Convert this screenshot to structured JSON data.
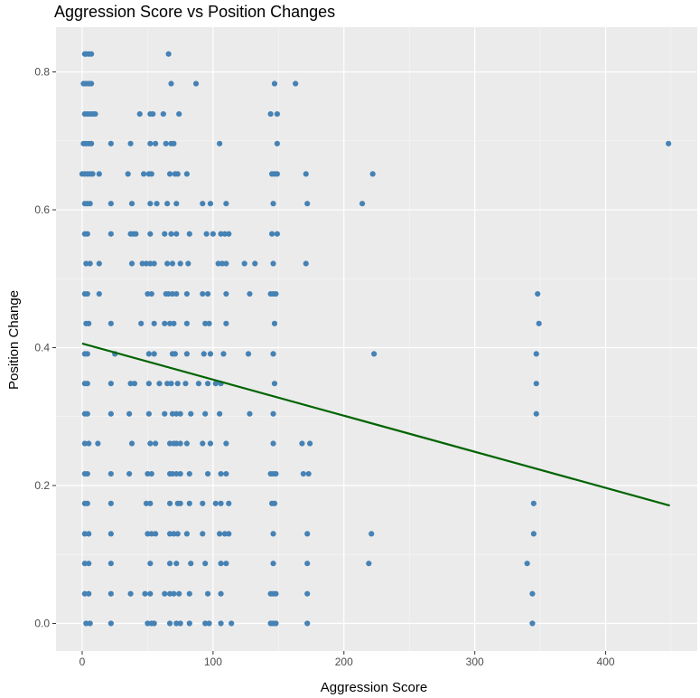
{
  "chart_data": {
    "type": "scatter",
    "title": "Aggression Score vs Position Changes",
    "xlabel": "Aggression Score",
    "ylabel": "Position Change",
    "xlim": [
      -20,
      470
    ],
    "ylim": [
      -0.04,
      0.865
    ],
    "x_ticks": [
      0,
      100,
      200,
      300,
      400
    ],
    "x_tick_labels": [
      "0",
      "100",
      "200",
      "300",
      "400"
    ],
    "y_ticks": [
      0.0,
      0.2,
      0.4,
      0.6,
      0.8
    ],
    "y_tick_labels": [
      "0.0",
      "0.2",
      "0.4",
      "0.6",
      "0.8"
    ],
    "grid": true,
    "legend": "none",
    "colors": {
      "panel": "#ebebeb",
      "grid_major": "#ffffff",
      "grid_minor": "#f5f5f5",
      "point": "#4682b4",
      "trend": "#006400",
      "tick_text": "#4d4d4d"
    },
    "series": [
      {
        "type": "scatter",
        "points": [
          [
            2,
            0.826
          ],
          [
            3,
            0.826
          ],
          [
            5,
            0.826
          ],
          [
            7,
            0.826
          ],
          [
            66,
            0.826
          ],
          [
            1,
            0.783
          ],
          [
            3,
            0.783
          ],
          [
            5,
            0.783
          ],
          [
            7,
            0.783
          ],
          [
            68,
            0.783
          ],
          [
            87,
            0.783
          ],
          [
            147,
            0.783
          ],
          [
            163,
            0.783
          ],
          [
            2,
            0.739
          ],
          [
            4,
            0.739
          ],
          [
            6,
            0.739
          ],
          [
            8,
            0.739
          ],
          [
            10,
            0.739
          ],
          [
            44,
            0.739
          ],
          [
            52,
            0.739
          ],
          [
            54,
            0.739
          ],
          [
            62,
            0.739
          ],
          [
            74,
            0.739
          ],
          [
            144,
            0.739
          ],
          [
            149,
            0.739
          ],
          [
            1,
            0.696
          ],
          [
            3,
            0.696
          ],
          [
            5,
            0.696
          ],
          [
            7,
            0.696
          ],
          [
            22,
            0.696
          ],
          [
            37,
            0.696
          ],
          [
            52,
            0.696
          ],
          [
            56,
            0.696
          ],
          [
            64,
            0.696
          ],
          [
            68,
            0.696
          ],
          [
            70,
            0.696
          ],
          [
            105,
            0.696
          ],
          [
            149,
            0.696
          ],
          [
            448,
            0.696
          ],
          [
            0,
            0.652
          ],
          [
            2,
            0.652
          ],
          [
            4,
            0.652
          ],
          [
            6,
            0.652
          ],
          [
            8,
            0.652
          ],
          [
            13,
            0.652
          ],
          [
            35,
            0.652
          ],
          [
            47,
            0.652
          ],
          [
            51,
            0.652
          ],
          [
            53,
            0.652
          ],
          [
            67,
            0.652
          ],
          [
            71,
            0.652
          ],
          [
            73,
            0.652
          ],
          [
            80,
            0.652
          ],
          [
            145,
            0.652
          ],
          [
            147,
            0.652
          ],
          [
            149,
            0.652
          ],
          [
            171,
            0.652
          ],
          [
            222,
            0.652
          ],
          [
            2,
            0.609
          ],
          [
            4,
            0.609
          ],
          [
            6,
            0.609
          ],
          [
            22,
            0.609
          ],
          [
            38,
            0.609
          ],
          [
            52,
            0.609
          ],
          [
            57,
            0.609
          ],
          [
            65,
            0.609
          ],
          [
            72,
            0.609
          ],
          [
            92,
            0.609
          ],
          [
            98,
            0.609
          ],
          [
            110,
            0.609
          ],
          [
            146,
            0.609
          ],
          [
            172,
            0.609
          ],
          [
            214,
            0.609
          ],
          [
            2,
            0.565
          ],
          [
            4,
            0.565
          ],
          [
            22,
            0.565
          ],
          [
            37,
            0.565
          ],
          [
            39,
            0.565
          ],
          [
            41,
            0.565
          ],
          [
            52,
            0.565
          ],
          [
            63,
            0.565
          ],
          [
            68,
            0.565
          ],
          [
            72,
            0.565
          ],
          [
            82,
            0.565
          ],
          [
            95,
            0.565
          ],
          [
            100,
            0.565
          ],
          [
            106,
            0.565
          ],
          [
            109,
            0.565
          ],
          [
            112,
            0.565
          ],
          [
            145,
            0.565
          ],
          [
            149,
            0.565
          ],
          [
            3,
            0.522
          ],
          [
            6,
            0.522
          ],
          [
            13,
            0.522
          ],
          [
            38,
            0.522
          ],
          [
            46,
            0.522
          ],
          [
            49,
            0.522
          ],
          [
            52,
            0.522
          ],
          [
            55,
            0.522
          ],
          [
            65,
            0.522
          ],
          [
            69,
            0.522
          ],
          [
            75,
            0.522
          ],
          [
            81,
            0.522
          ],
          [
            104,
            0.522
          ],
          [
            107,
            0.522
          ],
          [
            110,
            0.522
          ],
          [
            124,
            0.522
          ],
          [
            132,
            0.522
          ],
          [
            146,
            0.522
          ],
          [
            171,
            0.522
          ],
          [
            2,
            0.478
          ],
          [
            4,
            0.478
          ],
          [
            13,
            0.478
          ],
          [
            50,
            0.478
          ],
          [
            53,
            0.478
          ],
          [
            64,
            0.478
          ],
          [
            66,
            0.478
          ],
          [
            69,
            0.478
          ],
          [
            72,
            0.478
          ],
          [
            80,
            0.478
          ],
          [
            92,
            0.478
          ],
          [
            96,
            0.478
          ],
          [
            110,
            0.478
          ],
          [
            128,
            0.478
          ],
          [
            144,
            0.478
          ],
          [
            146,
            0.478
          ],
          [
            148,
            0.478
          ],
          [
            348,
            0.478
          ],
          [
            3,
            0.435
          ],
          [
            5,
            0.435
          ],
          [
            22,
            0.435
          ],
          [
            45,
            0.435
          ],
          [
            55,
            0.435
          ],
          [
            63,
            0.435
          ],
          [
            67,
            0.435
          ],
          [
            70,
            0.435
          ],
          [
            80,
            0.435
          ],
          [
            94,
            0.435
          ],
          [
            97,
            0.435
          ],
          [
            110,
            0.435
          ],
          [
            147,
            0.435
          ],
          [
            349,
            0.435
          ],
          [
            2,
            0.391
          ],
          [
            4,
            0.391
          ],
          [
            25,
            0.391
          ],
          [
            51,
            0.391
          ],
          [
            55,
            0.391
          ],
          [
            69,
            0.391
          ],
          [
            71,
            0.391
          ],
          [
            80,
            0.391
          ],
          [
            93,
            0.391
          ],
          [
            98,
            0.391
          ],
          [
            108,
            0.391
          ],
          [
            127,
            0.391
          ],
          [
            146,
            0.391
          ],
          [
            223,
            0.391
          ],
          [
            347,
            0.391
          ],
          [
            2,
            0.348
          ],
          [
            4,
            0.348
          ],
          [
            22,
            0.348
          ],
          [
            37,
            0.348
          ],
          [
            40,
            0.348
          ],
          [
            51,
            0.348
          ],
          [
            59,
            0.348
          ],
          [
            65,
            0.348
          ],
          [
            68,
            0.348
          ],
          [
            73,
            0.348
          ],
          [
            79,
            0.348
          ],
          [
            89,
            0.348
          ],
          [
            96,
            0.348
          ],
          [
            102,
            0.348
          ],
          [
            106,
            0.348
          ],
          [
            147,
            0.348
          ],
          [
            347,
            0.348
          ],
          [
            2,
            0.304
          ],
          [
            4,
            0.304
          ],
          [
            22,
            0.304
          ],
          [
            36,
            0.304
          ],
          [
            51,
            0.304
          ],
          [
            63,
            0.304
          ],
          [
            69,
            0.304
          ],
          [
            72,
            0.304
          ],
          [
            75,
            0.304
          ],
          [
            83,
            0.304
          ],
          [
            94,
            0.304
          ],
          [
            105,
            0.304
          ],
          [
            128,
            0.304
          ],
          [
            146,
            0.304
          ],
          [
            347,
            0.304
          ],
          [
            2,
            0.261
          ],
          [
            5,
            0.261
          ],
          [
            12,
            0.261
          ],
          [
            38,
            0.261
          ],
          [
            52,
            0.261
          ],
          [
            56,
            0.261
          ],
          [
            67,
            0.261
          ],
          [
            70,
            0.261
          ],
          [
            72,
            0.261
          ],
          [
            75,
            0.261
          ],
          [
            80,
            0.261
          ],
          [
            92,
            0.261
          ],
          [
            98,
            0.261
          ],
          [
            110,
            0.261
          ],
          [
            146,
            0.261
          ],
          [
            168,
            0.261
          ],
          [
            174,
            0.261
          ],
          [
            2,
            0.217
          ],
          [
            4,
            0.217
          ],
          [
            22,
            0.217
          ],
          [
            36,
            0.217
          ],
          [
            50,
            0.217
          ],
          [
            53,
            0.217
          ],
          [
            67,
            0.217
          ],
          [
            69,
            0.217
          ],
          [
            72,
            0.217
          ],
          [
            75,
            0.217
          ],
          [
            82,
            0.217
          ],
          [
            96,
            0.217
          ],
          [
            106,
            0.217
          ],
          [
            110,
            0.217
          ],
          [
            144,
            0.217
          ],
          [
            146,
            0.217
          ],
          [
            148,
            0.217
          ],
          [
            169,
            0.217
          ],
          [
            173,
            0.217
          ],
          [
            2,
            0.174
          ],
          [
            4,
            0.174
          ],
          [
            22,
            0.174
          ],
          [
            49,
            0.174
          ],
          [
            52,
            0.174
          ],
          [
            67,
            0.174
          ],
          [
            73,
            0.174
          ],
          [
            75,
            0.174
          ],
          [
            82,
            0.174
          ],
          [
            92,
            0.174
          ],
          [
            102,
            0.174
          ],
          [
            106,
            0.174
          ],
          [
            112,
            0.174
          ],
          [
            145,
            0.174
          ],
          [
            147,
            0.174
          ],
          [
            345,
            0.174
          ],
          [
            2,
            0.13
          ],
          [
            5,
            0.13
          ],
          [
            22,
            0.13
          ],
          [
            50,
            0.13
          ],
          [
            53,
            0.13
          ],
          [
            56,
            0.13
          ],
          [
            67,
            0.13
          ],
          [
            70,
            0.13
          ],
          [
            73,
            0.13
          ],
          [
            80,
            0.13
          ],
          [
            92,
            0.13
          ],
          [
            105,
            0.13
          ],
          [
            109,
            0.13
          ],
          [
            112,
            0.13
          ],
          [
            146,
            0.13
          ],
          [
            172,
            0.13
          ],
          [
            221,
            0.13
          ],
          [
            345,
            0.13
          ],
          [
            2,
            0.087
          ],
          [
            5,
            0.087
          ],
          [
            22,
            0.087
          ],
          [
            52,
            0.087
          ],
          [
            67,
            0.087
          ],
          [
            72,
            0.087
          ],
          [
            83,
            0.087
          ],
          [
            94,
            0.087
          ],
          [
            106,
            0.087
          ],
          [
            110,
            0.087
          ],
          [
            146,
            0.087
          ],
          [
            172,
            0.087
          ],
          [
            219,
            0.087
          ],
          [
            340,
            0.087
          ],
          [
            2,
            0.043
          ],
          [
            5,
            0.043
          ],
          [
            22,
            0.043
          ],
          [
            37,
            0.043
          ],
          [
            48,
            0.043
          ],
          [
            52,
            0.043
          ],
          [
            63,
            0.043
          ],
          [
            67,
            0.043
          ],
          [
            70,
            0.043
          ],
          [
            74,
            0.043
          ],
          [
            82,
            0.043
          ],
          [
            96,
            0.043
          ],
          [
            106,
            0.043
          ],
          [
            144,
            0.043
          ],
          [
            146,
            0.043
          ],
          [
            148,
            0.043
          ],
          [
            172,
            0.043
          ],
          [
            344,
            0.043
          ],
          [
            3,
            0.0
          ],
          [
            6,
            0.0
          ],
          [
            22,
            0.0
          ],
          [
            50,
            0.0
          ],
          [
            53,
            0.0
          ],
          [
            55,
            0.0
          ],
          [
            67,
            0.0
          ],
          [
            72,
            0.0
          ],
          [
            75,
            0.0
          ],
          [
            82,
            0.0
          ],
          [
            94,
            0.0
          ],
          [
            97,
            0.0
          ],
          [
            106,
            0.0
          ],
          [
            114,
            0.0
          ],
          [
            144,
            0.0
          ],
          [
            146,
            0.0
          ],
          [
            148,
            0.0
          ],
          [
            172,
            0.0
          ],
          [
            344,
            0.0
          ]
        ]
      },
      {
        "type": "line",
        "x": [
          0,
          449
        ],
        "y": [
          0.406,
          0.171
        ]
      }
    ]
  }
}
